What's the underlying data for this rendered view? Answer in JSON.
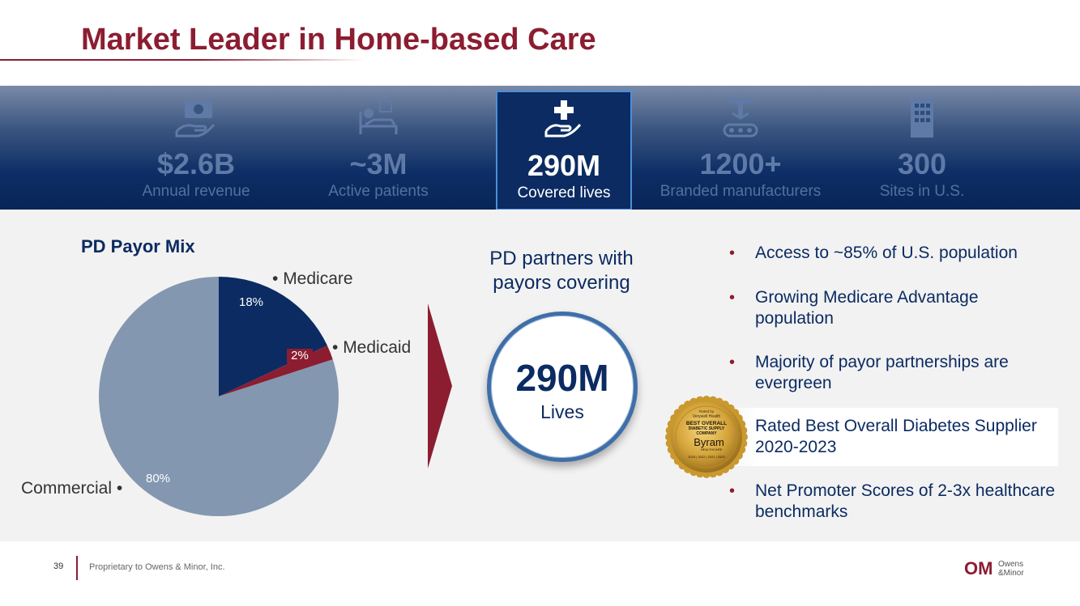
{
  "title": "Market Leader in Home-based Care",
  "stats": [
    {
      "icon": "money-hand-icon",
      "value": "$2.6B",
      "label": "Annual revenue",
      "active": false
    },
    {
      "icon": "patient-bed-icon",
      "value": "~3M",
      "label": "Active patients",
      "active": false
    },
    {
      "icon": "care-hand-cross-icon",
      "value": "290M",
      "label": "Covered lives",
      "active": true
    },
    {
      "icon": "manufacturing-icon",
      "value": "1200+",
      "label": "Branded manufacturers",
      "active": false
    },
    {
      "icon": "building-icon",
      "value": "300",
      "label": "Sites in U.S.",
      "active": false
    }
  ],
  "chart_data": {
    "type": "pie",
    "title": "PD Payor Mix",
    "slices": [
      {
        "name": "Medicare",
        "value": 18,
        "label": "18%",
        "color": "#0b2b62"
      },
      {
        "name": "Medicaid",
        "value": 2,
        "label": "2%",
        "color": "#8c1d31"
      },
      {
        "name": "Commercial",
        "value": 80,
        "label": "80%",
        "color": "#8497b0"
      }
    ]
  },
  "partners": {
    "line1": "PD partners with",
    "line2": "payors covering",
    "value": "290M",
    "unit": "Lives"
  },
  "bullets": [
    {
      "text": "Access to ~85% of U.S. population",
      "dot": true
    },
    {
      "text": "Growing Medicare Advantage population",
      "dot": true
    },
    {
      "text": "Majority of payor partnerships are evergreen",
      "dot": true
    },
    {
      "text": "Rated Best Overall Diabetes Supplier 2020-2023",
      "dot": false
    },
    {
      "text": "Net Promoter Scores of 2-3x healthcare benchmarks",
      "dot": true
    }
  ],
  "seal": {
    "line1": "Rated by",
    "line2": "Verywell Health",
    "line3": "BEST OVERALL",
    "line4": "DIABETIC SUPPLY",
    "line5": "COMPANY",
    "brand": "Byram",
    "sub": "HEALTHCARE",
    "years": "2023 | 2022 | 2021 | 2020"
  },
  "footer": {
    "page_number": "39",
    "text": "Proprietary to Owens & Minor, Inc."
  },
  "logo": {
    "mark": "OM",
    "line1": "Owens",
    "line2": "&Minor"
  },
  "colors": {
    "brand_red": "#8c1d31",
    "navy": "#0b2b62",
    "slate": "#8497b0"
  }
}
